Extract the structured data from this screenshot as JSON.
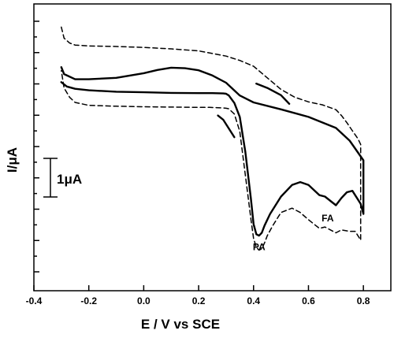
{
  "chart_data": {
    "type": "line",
    "xlabel": "E / V vs SCE",
    "ylabel": "I/μA",
    "xlim": [
      -0.4,
      0.9
    ],
    "ylim": [
      -6.0,
      3.9
    ],
    "x_ticks": [
      "-0.4",
      "-0.2",
      "0.0",
      "0.2",
      "0.4",
      "0.6",
      "0.8"
    ],
    "y_tick_count": 17,
    "grid": false,
    "legend": "none",
    "scale_bar": {
      "label": "1μA",
      "value": 1
    },
    "annotations": [
      {
        "text": "PA",
        "x": 0.42,
        "y": -4.6
      },
      {
        "text": "FA",
        "x": 0.67,
        "y": -3.6
      }
    ],
    "series": [
      {
        "style": "solid",
        "x": [
          -0.3,
          -0.29,
          -0.25,
          -0.2,
          -0.1,
          0.0,
          0.05,
          0.1,
          0.15,
          0.2,
          0.25,
          0.3,
          0.35,
          0.4,
          0.5,
          0.6,
          0.7,
          0.75,
          0.8,
          0.8,
          0.79,
          0.77,
          0.76,
          0.74,
          0.72,
          0.7,
          0.68,
          0.66,
          0.64,
          0.6,
          0.57,
          0.54,
          0.5,
          0.46,
          0.44,
          0.43,
          0.42,
          0.41,
          0.4,
          0.39,
          0.37,
          0.35,
          0.33,
          0.31,
          0.3,
          0.29,
          0.25,
          0.2,
          0.1,
          0.0,
          -0.1,
          -0.2,
          -0.25,
          -0.28,
          -0.3
        ],
        "y": [
          1.72,
          1.48,
          1.3,
          1.3,
          1.35,
          1.51,
          1.62,
          1.7,
          1.68,
          1.61,
          1.43,
          1.18,
          0.74,
          0.5,
          0.26,
          0.0,
          -0.38,
          -0.82,
          -1.5,
          -3.35,
          -3.0,
          -2.7,
          -2.55,
          -2.6,
          -2.8,
          -3.05,
          -2.9,
          -2.75,
          -2.7,
          -2.35,
          -2.25,
          -2.35,
          -2.75,
          -3.35,
          -3.75,
          -4.0,
          -4.1,
          -4.05,
          -3.7,
          -2.8,
          -1.2,
          0.0,
          0.48,
          0.74,
          0.8,
          0.81,
          0.82,
          0.82,
          0.83,
          0.85,
          0.87,
          0.92,
          0.97,
          1.05,
          1.2
        ]
      },
      {
        "style": "dashed",
        "x": [
          -0.3,
          -0.29,
          -0.27,
          -0.25,
          -0.2,
          -0.1,
          0.0,
          0.1,
          0.2,
          0.3,
          0.35,
          0.4,
          0.45,
          0.5,
          0.55,
          0.6,
          0.65,
          0.7,
          0.72,
          0.74,
          0.76,
          0.78,
          0.79,
          0.79,
          0.77,
          0.75,
          0.72,
          0.7,
          0.68,
          0.66,
          0.64,
          0.62,
          0.6,
          0.57,
          0.54,
          0.5,
          0.47,
          0.45,
          0.44,
          0.43,
          0.42,
          0.41,
          0.4,
          0.39,
          0.37,
          0.35,
          0.33,
          0.31,
          0.3,
          0.29,
          0.26,
          0.24,
          0.2,
          0.1,
          0.0,
          -0.1,
          -0.2,
          -0.25,
          -0.27,
          -0.29,
          -0.3
        ],
        "y": [
          3.1,
          2.72,
          2.55,
          2.48,
          2.45,
          2.43,
          2.4,
          2.35,
          2.28,
          2.1,
          1.95,
          1.75,
          1.35,
          0.95,
          0.68,
          0.52,
          0.42,
          0.25,
          0.05,
          -0.2,
          -0.48,
          -0.75,
          -0.95,
          -4.25,
          -3.95,
          -3.95,
          -3.9,
          -4.0,
          -3.9,
          -3.8,
          -3.85,
          -3.7,
          -3.55,
          -3.3,
          -3.15,
          -3.3,
          -3.75,
          -4.1,
          -4.35,
          -4.55,
          -4.6,
          -4.5,
          -4.2,
          -3.5,
          -2.0,
          -0.5,
          0.1,
          0.28,
          0.3,
          0.31,
          0.32,
          0.33,
          0.33,
          0.34,
          0.35,
          0.37,
          0.4,
          0.5,
          0.68,
          1.0,
          1.6
        ]
      },
      {
        "style": "solid",
        "x": [
          0.27,
          0.29,
          0.31,
          0.33
        ],
        "y": [
          0.05,
          -0.1,
          -0.4,
          -0.7
        ]
      },
      {
        "style": "solid",
        "x": [
          0.41,
          0.45,
          0.5,
          0.53
        ],
        "y": [
          1.15,
          1.0,
          0.75,
          0.45
        ]
      }
    ]
  }
}
